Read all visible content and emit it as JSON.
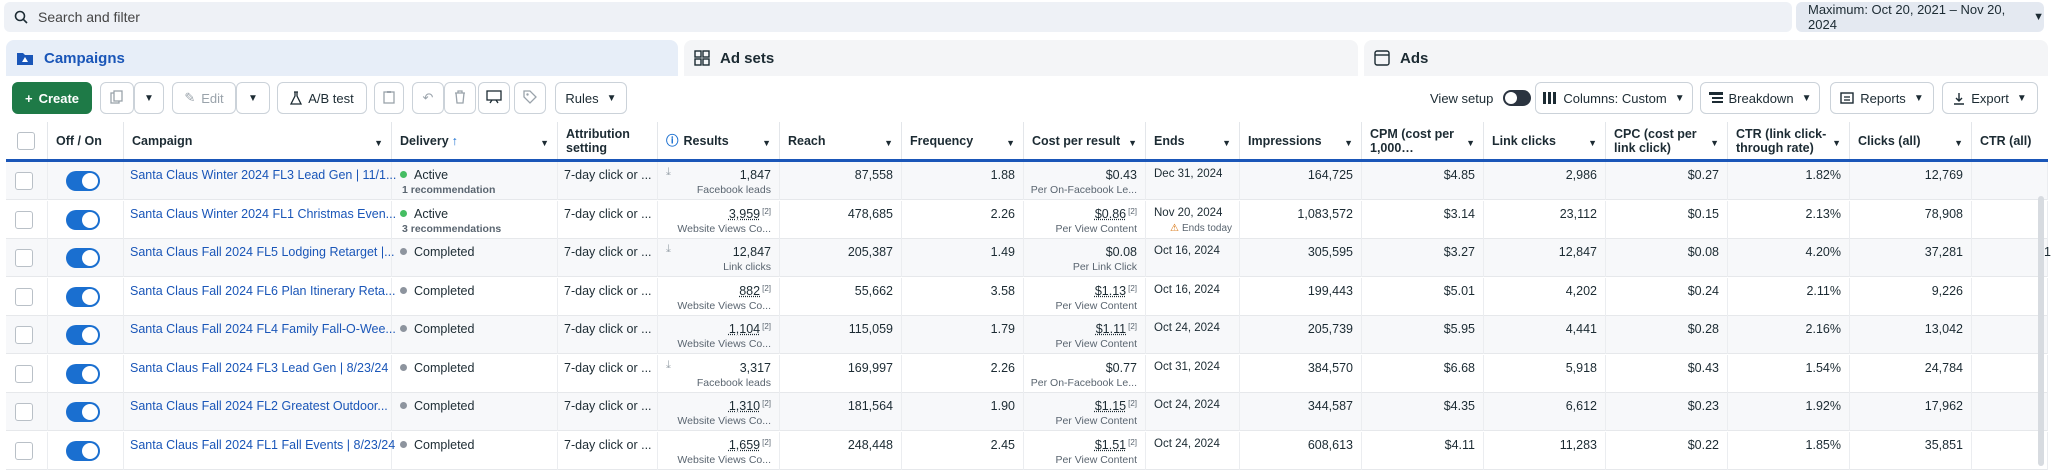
{
  "search": {
    "placeholder": "Search and filter"
  },
  "date_range": {
    "label": "Maximum: Oct 20, 2021 – Nov 20, 2024"
  },
  "tabs": [
    {
      "label": "Campaigns",
      "icon": "folder-icon"
    },
    {
      "label": "Ad sets",
      "icon": "grid-icon"
    },
    {
      "label": "Ads",
      "icon": "ad-icon"
    }
  ],
  "toolbar": {
    "create": "Create",
    "edit": "Edit",
    "ab_test": "A/B test",
    "rules": "Rules",
    "view_setup": "View setup",
    "columns": "Columns: Custom",
    "breakdown": "Breakdown",
    "reports": "Reports",
    "export": "Export"
  },
  "columns": [
    "Off / On",
    "Campaign",
    "Delivery",
    "Attribution setting",
    "Results",
    "Reach",
    "Frequency",
    "Cost per result",
    "Ends",
    "Impressions",
    "CPM (cost per 1,000…",
    "Link clicks",
    "CPC (cost per link click)",
    "CTR (link click-through rate)",
    "Clicks (all)",
    "CTR (all)"
  ],
  "rows": [
    {
      "campaign": "Santa Claus Winter 2024 FL3 Lead Gen | 11/1...",
      "delivery": "Active",
      "delivery_note": "1 recommendation",
      "status_color": "#45bd62",
      "attribution": "7-day click or ...",
      "results": "1,847",
      "results_sub": "Facebook leads",
      "results_sup": "",
      "reach": "87,558",
      "frequency": "1.88",
      "cpr": "$0.43",
      "cpr_sub": "Per On-Facebook Le...",
      "ends": "Dec 31, 2024",
      "ends_note": "",
      "impressions": "164,725",
      "cpm": "$4.85",
      "link_clicks": "2,986",
      "cpc": "$0.27",
      "ctr_link": "1.82%",
      "clicks_all": "12,769",
      "ctr_all": ""
    },
    {
      "campaign": "Santa Claus Winter 2024 FL1 Christmas Even...",
      "delivery": "Active",
      "delivery_note": "3 recommendations",
      "status_color": "#45bd62",
      "attribution": "7-day click or ...",
      "results": "3,959",
      "results_sub": "Website Views Co...",
      "results_sup": "[2]",
      "reach": "478,685",
      "frequency": "2.26",
      "cpr": "$0.86",
      "cpr_sub": "Per View Content",
      "ends": "Nov 20, 2024",
      "ends_note": "Ends today",
      "impressions": "1,083,572",
      "cpm": "$3.14",
      "link_clicks": "23,112",
      "cpc": "$0.15",
      "ctr_link": "2.13%",
      "clicks_all": "78,908",
      "ctr_all": ""
    },
    {
      "campaign": "Santa Claus Fall 2024 FL5 Lodging Retarget |...",
      "delivery": "Completed",
      "delivery_note": "",
      "status_color": "#8d949e",
      "attribution": "7-day click or ...",
      "results": "12,847",
      "results_sub": "Link clicks",
      "results_sup": "",
      "reach": "205,387",
      "frequency": "1.49",
      "cpr": "$0.08",
      "cpr_sub": "Per Link Click",
      "ends": "Oct 16, 2024",
      "ends_note": "",
      "impressions": "305,595",
      "cpm": "$3.27",
      "link_clicks": "12,847",
      "cpc": "$0.08",
      "ctr_link": "4.20%",
      "clicks_all": "37,281",
      "ctr_all": "1"
    },
    {
      "campaign": "Santa Claus Fall 2024 FL6 Plan Itinerary Reta...",
      "delivery": "Completed",
      "delivery_note": "",
      "status_color": "#8d949e",
      "attribution": "7-day click or ...",
      "results": "882",
      "results_sub": "Website Views Co...",
      "results_sup": "[2]",
      "reach": "55,662",
      "frequency": "3.58",
      "cpr": "$1.13",
      "cpr_sub": "Per View Content",
      "ends": "Oct 16, 2024",
      "ends_note": "",
      "impressions": "199,443",
      "cpm": "$5.01",
      "link_clicks": "4,202",
      "cpc": "$0.24",
      "ctr_link": "2.11%",
      "clicks_all": "9,226",
      "ctr_all": ""
    },
    {
      "campaign": "Santa Claus Fall 2024 FL4 Family Fall-O-Wee...",
      "delivery": "Completed",
      "delivery_note": "",
      "status_color": "#8d949e",
      "attribution": "7-day click or ...",
      "results": "1,104",
      "results_sub": "Website Views Co...",
      "results_sup": "[2]",
      "reach": "115,059",
      "frequency": "1.79",
      "cpr": "$1.11",
      "cpr_sub": "Per View Content",
      "ends": "Oct 24, 2024",
      "ends_note": "",
      "impressions": "205,739",
      "cpm": "$5.95",
      "link_clicks": "4,441",
      "cpc": "$0.28",
      "ctr_link": "2.16%",
      "clicks_all": "13,042",
      "ctr_all": ""
    },
    {
      "campaign": "Santa Claus Fall 2024 FL3 Lead Gen | 8/23/24",
      "delivery": "Completed",
      "delivery_note": "",
      "status_color": "#8d949e",
      "attribution": "7-day click or ...",
      "results": "3,317",
      "results_sub": "Facebook leads",
      "results_sup": "",
      "reach": "169,997",
      "frequency": "2.26",
      "cpr": "$0.77",
      "cpr_sub": "Per On-Facebook Le...",
      "ends": "Oct 31, 2024",
      "ends_note": "",
      "impressions": "384,570",
      "cpm": "$6.68",
      "link_clicks": "5,918",
      "cpc": "$0.43",
      "ctr_link": "1.54%",
      "clicks_all": "24,784",
      "ctr_all": ""
    },
    {
      "campaign": "Santa Claus Fall 2024 FL2 Greatest Outdoor...",
      "delivery": "Completed",
      "delivery_note": "",
      "status_color": "#8d949e",
      "attribution": "7-day click or ...",
      "results": "1,310",
      "results_sub": "Website Views Co...",
      "results_sup": "[2]",
      "reach": "181,564",
      "frequency": "1.90",
      "cpr": "$1.15",
      "cpr_sub": "Per View Content",
      "ends": "Oct 24, 2024",
      "ends_note": "",
      "impressions": "344,587",
      "cpm": "$4.35",
      "link_clicks": "6,612",
      "cpc": "$0.23",
      "ctr_link": "1.92%",
      "clicks_all": "17,962",
      "ctr_all": ""
    },
    {
      "campaign": "Santa Claus Fall 2024 FL1 Fall Events | 8/23/24",
      "delivery": "Completed",
      "delivery_note": "",
      "status_color": "#8d949e",
      "attribution": "7-day click or ...",
      "results": "1,659",
      "results_sub": "Website Views Co...",
      "results_sup": "[2]",
      "reach": "248,448",
      "frequency": "2.45",
      "cpr": "$1.51",
      "cpr_sub": "Per View Content",
      "ends": "Oct 24, 2024",
      "ends_note": "",
      "impressions": "608,613",
      "cpm": "$4.11",
      "link_clicks": "11,283",
      "cpc": "$0.22",
      "ctr_link": "1.85%",
      "clicks_all": "35,851",
      "ctr_all": ""
    }
  ]
}
